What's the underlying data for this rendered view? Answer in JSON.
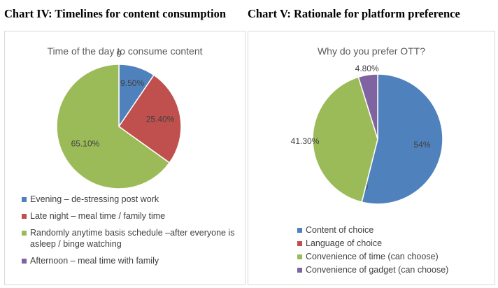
{
  "captions": {
    "left": "Chart IV: Timelines for content consumption",
    "right": "Chart V: Rationale for platform preference"
  },
  "chart_data": [
    {
      "type": "pie",
      "title": "Time of the day to consume content",
      "slices": [
        {
          "name": "Evening – de-stressing post work",
          "value": 9.5,
          "label": "9.50%",
          "color": "#4f81bd"
        },
        {
          "name": "Late night – meal time / family time",
          "value": 25.4,
          "label": "25.40%",
          "color": "#c0504d"
        },
        {
          "name": "Randomly anytime basis schedule –after everyone is asleep / binge watching",
          "value": 65.1,
          "label": "65.10%",
          "color": "#9bbb59"
        },
        {
          "name": "Afternoon – meal time with family",
          "value": 0,
          "label": "0",
          "color": "#8064a2"
        }
      ],
      "legend_position": "bottom"
    },
    {
      "type": "pie",
      "title": "Why do you prefer OTT?",
      "slices": [
        {
          "name": "Content of choice",
          "value": 54,
          "label": "54%",
          "color": "#4f81bd"
        },
        {
          "name": "Language of choice",
          "value": 0,
          "label": "0",
          "color": "#c0504d"
        },
        {
          "name": "Convenience of time (can choose)",
          "value": 41.3,
          "label": "41.30%",
          "color": "#9bbb59"
        },
        {
          "name": "Convenience of gadget (can choose)",
          "value": 4.8,
          "label": "4.80%",
          "color": "#8064a2"
        }
      ],
      "legend_position": "bottom"
    }
  ]
}
